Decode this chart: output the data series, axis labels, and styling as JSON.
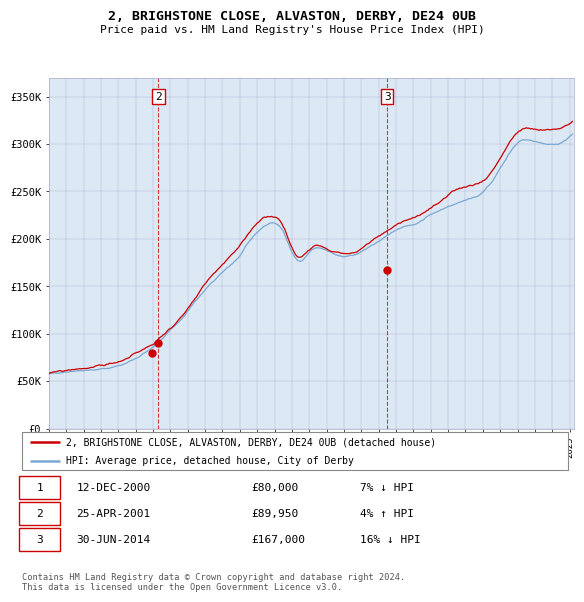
{
  "title1": "2, BRIGHSTONE CLOSE, ALVASTON, DERBY, DE24 0UB",
  "title2": "Price paid vs. HM Land Registry's House Price Index (HPI)",
  "hpi_color": "#7aa8d2",
  "property_color": "#cc0000",
  "background_color": "#dce9f5",
  "sale_dates": [
    "2000-12-12",
    "2001-04-25",
    "2014-06-30"
  ],
  "sale_prices": [
    80000,
    89950,
    167000
  ],
  "vline_indices": [
    1,
    2
  ],
  "vline_labels": [
    "2",
    "3"
  ],
  "legend_property": "2, BRIGHSTONE CLOSE, ALVASTON, DERBY, DE24 0UB (detached house)",
  "legend_hpi": "HPI: Average price, detached house, City of Derby",
  "table_rows": [
    [
      "1",
      "12-DEC-2000",
      "£80,000",
      "7% ↓ HPI"
    ],
    [
      "2",
      "25-APR-2001",
      "£89,950",
      "4% ↑ HPI"
    ],
    [
      "3",
      "30-JUN-2014",
      "£167,000",
      "16% ↓ HPI"
    ]
  ],
  "footer": "Contains HM Land Registry data © Crown copyright and database right 2024.\nThis data is licensed under the Open Government Licence v3.0.",
  "ylim": [
    0,
    370000
  ],
  "yticks": [
    0,
    50000,
    100000,
    150000,
    200000,
    250000,
    300000,
    350000
  ],
  "ytick_labels": [
    "£0",
    "£50K",
    "£100K",
    "£150K",
    "£200K",
    "£250K",
    "£300K",
    "£350K"
  ],
  "start_year": 1995,
  "end_year": 2025
}
